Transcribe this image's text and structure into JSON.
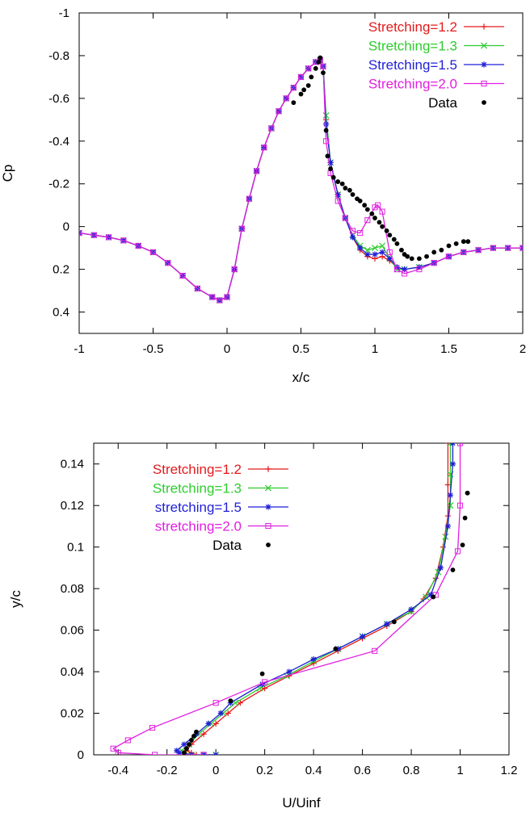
{
  "chart_data": [
    {
      "type": "line",
      "xlabel": "x/c",
      "ylabel": "Cp",
      "xlim": [
        -1,
        2
      ],
      "ylim": [
        0.5,
        -1
      ],
      "y_inverted": true,
      "xticks": [
        "-1",
        "-0.5",
        "0",
        "0.5",
        "1",
        "1.5",
        "2"
      ],
      "yticks": [
        "-1",
        "-0.8",
        "-0.6",
        "-0.4",
        "-0.2",
        "0",
        "0.2",
        "0.4"
      ],
      "grid": false,
      "legend_position": "top-right",
      "series": [
        {
          "name": "Stretching=1.2",
          "color": "#e41a1c",
          "marker": "plus",
          "x": [
            -1.0,
            -0.9,
            -0.8,
            -0.7,
            -0.6,
            -0.5,
            -0.4,
            -0.3,
            -0.2,
            -0.1,
            -0.05,
            0.0,
            0.05,
            0.1,
            0.15,
            0.2,
            0.25,
            0.3,
            0.35,
            0.4,
            0.45,
            0.5,
            0.55,
            0.6,
            0.63,
            0.65,
            0.67,
            0.7,
            0.75,
            0.8,
            0.85,
            0.9,
            0.95,
            1.0,
            1.05,
            1.1,
            1.15,
            1.2,
            1.3,
            1.4,
            1.5,
            1.6,
            1.7,
            1.8,
            1.9,
            2.0
          ],
          "y": [
            0.03,
            0.04,
            0.05,
            0.065,
            0.09,
            0.12,
            0.17,
            0.23,
            0.29,
            0.33,
            0.345,
            0.33,
            0.2,
            0.01,
            -0.13,
            -0.26,
            -0.37,
            -0.46,
            -0.54,
            -0.6,
            -0.65,
            -0.7,
            -0.74,
            -0.77,
            -0.78,
            -0.75,
            -0.5,
            -0.3,
            -0.15,
            -0.04,
            0.05,
            0.11,
            0.14,
            0.15,
            0.14,
            0.16,
            0.19,
            0.2,
            0.19,
            0.17,
            0.14,
            0.12,
            0.11,
            0.1,
            0.1,
            0.1
          ]
        },
        {
          "name": "Stretching=1.3",
          "color": "#2ecc2e",
          "marker": "cross",
          "x": [
            -1.0,
            -0.9,
            -0.8,
            -0.7,
            -0.6,
            -0.5,
            -0.4,
            -0.3,
            -0.2,
            -0.1,
            -0.05,
            0.0,
            0.05,
            0.1,
            0.15,
            0.2,
            0.25,
            0.3,
            0.35,
            0.4,
            0.45,
            0.5,
            0.55,
            0.6,
            0.63,
            0.65,
            0.67,
            0.7,
            0.75,
            0.8,
            0.85,
            0.9,
            0.95,
            1.0,
            1.05,
            1.1,
            1.15,
            1.2,
            1.3,
            1.4,
            1.5,
            1.6,
            1.7,
            1.8,
            1.9,
            2.0
          ],
          "y": [
            0.03,
            0.04,
            0.05,
            0.065,
            0.09,
            0.12,
            0.17,
            0.23,
            0.29,
            0.33,
            0.345,
            0.33,
            0.2,
            0.01,
            -0.13,
            -0.26,
            -0.37,
            -0.46,
            -0.54,
            -0.6,
            -0.65,
            -0.7,
            -0.74,
            -0.77,
            -0.78,
            -0.75,
            -0.52,
            -0.3,
            -0.15,
            -0.04,
            0.04,
            0.09,
            0.11,
            0.1,
            0.09,
            0.15,
            0.2,
            0.2,
            0.19,
            0.17,
            0.14,
            0.12,
            0.11,
            0.1,
            0.1,
            0.1
          ]
        },
        {
          "name": "Stretching=1.5",
          "color": "#1f1fd6",
          "marker": "star",
          "x": [
            -1.0,
            -0.9,
            -0.8,
            -0.7,
            -0.6,
            -0.5,
            -0.4,
            -0.3,
            -0.2,
            -0.1,
            -0.05,
            0.0,
            0.05,
            0.1,
            0.15,
            0.2,
            0.25,
            0.3,
            0.35,
            0.4,
            0.45,
            0.5,
            0.55,
            0.6,
            0.63,
            0.65,
            0.67,
            0.7,
            0.75,
            0.8,
            0.85,
            0.9,
            0.95,
            1.0,
            1.05,
            1.1,
            1.15,
            1.2,
            1.3,
            1.4,
            1.5,
            1.6,
            1.7,
            1.8,
            1.9,
            2.0
          ],
          "y": [
            0.03,
            0.04,
            0.05,
            0.065,
            0.09,
            0.12,
            0.17,
            0.23,
            0.29,
            0.33,
            0.345,
            0.33,
            0.2,
            0.01,
            -0.13,
            -0.26,
            -0.37,
            -0.46,
            -0.54,
            -0.6,
            -0.65,
            -0.7,
            -0.74,
            -0.77,
            -0.78,
            -0.75,
            -0.48,
            -0.3,
            -0.15,
            -0.04,
            0.05,
            0.1,
            0.13,
            0.13,
            0.12,
            0.15,
            0.19,
            0.2,
            0.19,
            0.17,
            0.14,
            0.12,
            0.11,
            0.1,
            0.1,
            0.1
          ]
        },
        {
          "name": "Stretching=2.0",
          "color": "#e020e0",
          "marker": "square",
          "x": [
            -1.0,
            -0.9,
            -0.8,
            -0.7,
            -0.6,
            -0.5,
            -0.4,
            -0.3,
            -0.2,
            -0.1,
            -0.05,
            0.0,
            0.05,
            0.1,
            0.15,
            0.2,
            0.25,
            0.3,
            0.35,
            0.4,
            0.45,
            0.5,
            0.55,
            0.6,
            0.63,
            0.65,
            0.67,
            0.7,
            0.75,
            0.8,
            0.85,
            0.9,
            0.95,
            1.0,
            1.02,
            1.05,
            1.1,
            1.15,
            1.2,
            1.3,
            1.4,
            1.5,
            1.6,
            1.7,
            1.8,
            1.9,
            2.0
          ],
          "y": [
            0.03,
            0.04,
            0.05,
            0.065,
            0.09,
            0.12,
            0.17,
            0.23,
            0.29,
            0.33,
            0.345,
            0.33,
            0.2,
            0.01,
            -0.13,
            -0.26,
            -0.37,
            -0.46,
            -0.54,
            -0.6,
            -0.65,
            -0.7,
            -0.74,
            -0.77,
            -0.78,
            -0.75,
            -0.4,
            -0.25,
            -0.12,
            -0.04,
            0.02,
            0.03,
            -0.03,
            -0.09,
            -0.1,
            -0.07,
            0.12,
            0.2,
            0.22,
            0.2,
            0.17,
            0.14,
            0.12,
            0.11,
            0.1,
            0.1,
            0.1
          ]
        },
        {
          "name": "Data",
          "color": "#000000",
          "marker": "dot",
          "line": false,
          "x": [
            0.45,
            0.5,
            0.52,
            0.55,
            0.57,
            0.6,
            0.62,
            0.63,
            0.65,
            0.67,
            0.68,
            0.7,
            0.72,
            0.75,
            0.78,
            0.8,
            0.83,
            0.85,
            0.88,
            0.9,
            0.93,
            0.95,
            0.98,
            1.0,
            1.03,
            1.05,
            1.08,
            1.1,
            1.13,
            1.15,
            1.18,
            1.2,
            1.22,
            1.25,
            1.3,
            1.35,
            1.4,
            1.45,
            1.5,
            1.55,
            1.6,
            1.63
          ],
          "y": [
            -0.58,
            -0.62,
            -0.64,
            -0.66,
            -0.7,
            -0.74,
            -0.77,
            -0.79,
            -0.72,
            -0.45,
            -0.33,
            -0.27,
            -0.23,
            -0.21,
            -0.2,
            -0.18,
            -0.17,
            -0.15,
            -0.13,
            -0.12,
            -0.1,
            -0.08,
            -0.06,
            -0.04,
            -0.02,
            0.0,
            0.02,
            0.04,
            0.06,
            0.08,
            0.11,
            0.13,
            0.14,
            0.15,
            0.15,
            0.14,
            0.12,
            0.11,
            0.09,
            0.08,
            0.07,
            0.07
          ]
        }
      ]
    },
    {
      "type": "line",
      "xlabel": "U/Uinf",
      "ylabel": "y/c",
      "xlim": [
        -0.5,
        1.2
      ],
      "ylim": [
        0,
        0.15
      ],
      "xticks": [
        "-0.4",
        "-0.2",
        "0",
        "0.2",
        "0.4",
        "0.6",
        "0.8",
        "1",
        "1.2"
      ],
      "yticks": [
        "0",
        "0.02",
        "0.04",
        "0.06",
        "0.08",
        "0.1",
        "0.12",
        "0.14"
      ],
      "grid": false,
      "legend_position": "top-left",
      "series": [
        {
          "name": "Stretching=1.2",
          "color": "#e41a1c",
          "marker": "plus",
          "x": [
            0.0,
            -0.05,
            -0.08,
            -0.1,
            -0.12,
            -0.1,
            -0.05,
            0.0,
            0.05,
            0.1,
            0.2,
            0.3,
            0.4,
            0.5,
            0.6,
            0.7,
            0.8,
            0.85,
            0.9,
            0.93,
            0.95,
            0.95,
            0.95
          ],
          "y": [
            0.0,
            0.0,
            0.0,
            0.001,
            0.002,
            0.005,
            0.01,
            0.015,
            0.02,
            0.025,
            0.032,
            0.038,
            0.044,
            0.05,
            0.056,
            0.062,
            0.069,
            0.075,
            0.085,
            0.1,
            0.115,
            0.13,
            0.15
          ]
        },
        {
          "name": "Stretching=1.3",
          "color": "#2ecc2e",
          "marker": "cross",
          "x": [
            0.0,
            -0.05,
            -0.1,
            -0.13,
            -0.14,
            -0.11,
            -0.07,
            -0.02,
            0.03,
            0.08,
            0.18,
            0.29,
            0.4,
            0.5,
            0.6,
            0.7,
            0.8,
            0.86,
            0.91,
            0.94,
            0.96,
            0.96,
            0.96
          ],
          "y": [
            0.0,
            0.0,
            0.0,
            0.001,
            0.002,
            0.005,
            0.01,
            0.015,
            0.02,
            0.025,
            0.032,
            0.038,
            0.045,
            0.051,
            0.057,
            0.063,
            0.069,
            0.076,
            0.088,
            0.105,
            0.12,
            0.135,
            0.15
          ]
        },
        {
          "name": "stretching=1.5",
          "color": "#1f1fd6",
          "marker": "star",
          "x": [
            0.0,
            -0.05,
            -0.1,
            -0.15,
            -0.16,
            -0.13,
            -0.08,
            -0.03,
            0.02,
            0.06,
            0.19,
            0.3,
            0.4,
            0.5,
            0.6,
            0.7,
            0.8,
            0.88,
            0.92,
            0.95,
            0.96,
            0.97,
            0.97
          ],
          "y": [
            0.0,
            0.0,
            0.0,
            0.001,
            0.002,
            0.005,
            0.01,
            0.015,
            0.02,
            0.025,
            0.034,
            0.04,
            0.046,
            0.051,
            0.057,
            0.063,
            0.07,
            0.077,
            0.09,
            0.11,
            0.125,
            0.14,
            0.15
          ]
        },
        {
          "name": "stretching=2.0",
          "color": "#e020e0",
          "marker": "square",
          "x": [
            -0.05,
            -0.25,
            -0.4,
            -0.42,
            -0.36,
            -0.26,
            0.0,
            0.2,
            0.65,
            0.9,
            0.99,
            1.0,
            1.0
          ],
          "y": [
            0.0,
            0.0,
            0.001,
            0.003,
            0.007,
            0.013,
            0.025,
            0.035,
            0.05,
            0.077,
            0.098,
            0.12,
            0.15
          ]
        },
        {
          "name": "Data",
          "color": "#000000",
          "marker": "dot",
          "line": false,
          "x": [
            -0.13,
            -0.12,
            -0.11,
            -0.1,
            -0.09,
            -0.08,
            0.06,
            0.19,
            0.49,
            0.73,
            0.89,
            0.97,
            1.01,
            1.02,
            1.03,
            1.03
          ],
          "y": [
            0.001,
            0.003,
            0.005,
            0.007,
            0.009,
            0.011,
            0.026,
            0.039,
            0.051,
            0.064,
            0.076,
            0.089,
            0.101,
            0.114,
            0.126,
            0.126
          ]
        }
      ]
    }
  ]
}
